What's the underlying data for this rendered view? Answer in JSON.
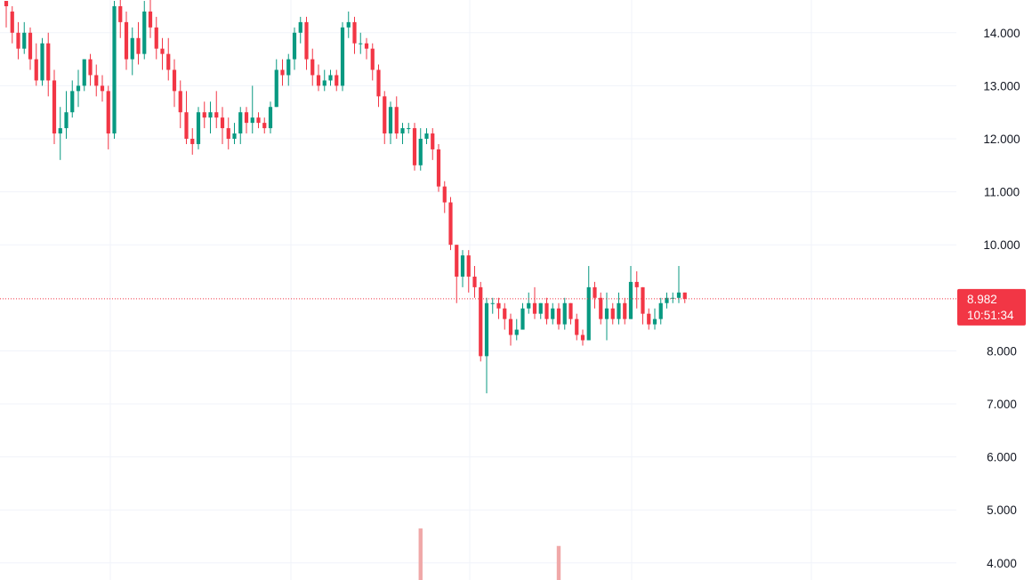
{
  "chart_data": {
    "type": "candlestick",
    "title": "",
    "xlabel": "",
    "ylabel": "",
    "ylim": [
      3.8,
      14.6
    ],
    "y_ticks": [
      "14.000",
      "13.000",
      "12.000",
      "11.000",
      "10.000",
      "8.000",
      "7.000",
      "6.000",
      "5.000",
      "4.000"
    ],
    "grid": true,
    "last_price": {
      "value": 8.982,
      "label": "8.982",
      "countdown": "10:51:34",
      "color": "#f23645"
    },
    "colors": {
      "up": "#089981",
      "down": "#f23645",
      "volume": "#f0a8a8",
      "grid": "#f0f3fa"
    },
    "candles": [
      [
        14.6,
        14.5,
        14.6,
        14.1
      ],
      [
        14.4,
        14.0,
        14.5,
        13.8
      ],
      [
        14.0,
        13.7,
        14.2,
        13.5
      ],
      [
        13.7,
        14.0,
        14.2,
        13.6
      ],
      [
        14.0,
        13.5,
        14.1,
        13.3
      ],
      [
        13.5,
        13.1,
        13.8,
        13.0
      ],
      [
        13.1,
        13.8,
        13.9,
        13.0
      ],
      [
        13.8,
        13.1,
        14.0,
        12.8
      ],
      [
        13.1,
        12.1,
        13.3,
        11.9
      ],
      [
        12.1,
        12.2,
        12.6,
        11.6
      ],
      [
        12.2,
        12.5,
        12.9,
        12.0
      ],
      [
        12.5,
        12.9,
        13.1,
        12.4
      ],
      [
        12.9,
        13.0,
        13.3,
        12.6
      ],
      [
        13.0,
        13.5,
        13.5,
        12.9
      ],
      [
        13.5,
        13.2,
        13.6,
        13.0
      ],
      [
        13.2,
        13.0,
        13.4,
        12.8
      ],
      [
        13.0,
        12.9,
        13.2,
        12.7
      ],
      [
        12.9,
        12.1,
        13.0,
        11.8
      ],
      [
        12.1,
        14.5,
        14.6,
        12.0
      ],
      [
        14.5,
        14.2,
        14.8,
        13.9
      ],
      [
        14.2,
        13.5,
        14.4,
        13.3
      ],
      [
        13.5,
        13.9,
        14.1,
        13.2
      ],
      [
        13.9,
        13.6,
        14.2,
        13.4
      ],
      [
        13.6,
        14.4,
        14.6,
        13.5
      ],
      [
        14.4,
        14.1,
        14.7,
        13.9
      ],
      [
        14.1,
        13.7,
        14.3,
        13.5
      ],
      [
        13.7,
        13.6,
        13.9,
        13.3
      ],
      [
        13.6,
        13.3,
        13.9,
        13.1
      ],
      [
        13.3,
        12.9,
        13.5,
        12.6
      ],
      [
        12.9,
        12.5,
        13.1,
        12.2
      ],
      [
        12.5,
        12.0,
        12.9,
        11.9
      ],
      [
        12.0,
        11.9,
        12.2,
        11.7
      ],
      [
        11.9,
        12.5,
        12.6,
        11.8
      ],
      [
        12.5,
        12.4,
        12.7,
        12.2
      ],
      [
        12.4,
        12.5,
        12.7,
        12.1
      ],
      [
        12.5,
        12.4,
        12.9,
        12.2
      ],
      [
        12.4,
        12.2,
        12.6,
        11.9
      ],
      [
        12.2,
        12.0,
        12.4,
        11.8
      ],
      [
        12.0,
        12.1,
        12.3,
        11.9
      ],
      [
        12.1,
        12.5,
        12.6,
        11.9
      ],
      [
        12.5,
        12.3,
        12.6,
        12.1
      ],
      [
        12.3,
        12.4,
        13.0,
        12.1
      ],
      [
        12.4,
        12.3,
        12.5,
        12.2
      ],
      [
        12.3,
        12.2,
        12.4,
        12.1
      ],
      [
        12.2,
        12.6,
        12.7,
        12.1
      ],
      [
        12.6,
        13.3,
        13.5,
        12.6
      ],
      [
        13.3,
        13.2,
        13.5,
        13.0
      ],
      [
        13.2,
        13.5,
        13.6,
        13.0
      ],
      [
        13.5,
        14.0,
        14.1,
        13.3
      ],
      [
        14.0,
        14.2,
        14.3,
        13.8
      ],
      [
        14.2,
        13.5,
        14.3,
        13.3
      ],
      [
        13.5,
        13.2,
        13.7,
        13.0
      ],
      [
        13.2,
        13.0,
        13.4,
        12.9
      ],
      [
        13.0,
        13.1,
        13.3,
        12.9
      ],
      [
        13.1,
        13.2,
        13.3,
        13.0
      ],
      [
        13.2,
        13.0,
        13.3,
        12.9
      ],
      [
        13.0,
        14.1,
        14.2,
        12.9
      ],
      [
        14.1,
        14.2,
        14.4,
        13.9
      ],
      [
        14.2,
        13.8,
        14.3,
        13.6
      ],
      [
        13.8,
        13.8,
        14.0,
        13.6
      ],
      [
        13.8,
        13.7,
        13.9,
        13.5
      ],
      [
        13.7,
        13.3,
        13.8,
        13.1
      ],
      [
        13.3,
        12.8,
        13.4,
        12.6
      ],
      [
        12.8,
        12.1,
        12.9,
        11.9
      ],
      [
        12.1,
        12.6,
        12.7,
        11.9
      ],
      [
        12.6,
        12.1,
        12.8,
        12.0
      ],
      [
        12.1,
        12.2,
        12.3,
        11.9
      ],
      [
        12.2,
        12.2,
        12.3,
        12.1
      ],
      [
        12.2,
        11.5,
        12.3,
        11.4
      ],
      [
        11.5,
        12.0,
        12.2,
        11.4
      ],
      [
        12.0,
        12.1,
        12.2,
        11.9
      ],
      [
        12.1,
        11.8,
        12.2,
        11.6
      ],
      [
        11.8,
        11.1,
        11.9,
        11.0
      ],
      [
        11.1,
        10.8,
        11.2,
        10.6
      ],
      [
        10.8,
        10.0,
        10.9,
        9.9
      ],
      [
        10.0,
        9.4,
        10.0,
        8.9
      ],
      [
        9.4,
        9.8,
        9.9,
        9.2
      ],
      [
        9.8,
        9.4,
        9.9,
        9.1
      ],
      [
        9.4,
        9.2,
        9.6,
        9.0
      ],
      [
        9.2,
        7.9,
        9.3,
        7.8
      ],
      [
        7.9,
        8.9,
        9.0,
        7.2
      ],
      [
        8.9,
        8.9,
        9.0,
        8.7
      ],
      [
        8.9,
        8.8,
        9.0,
        8.6
      ],
      [
        8.8,
        8.6,
        8.9,
        8.4
      ],
      [
        8.6,
        8.3,
        8.7,
        8.1
      ],
      [
        8.3,
        8.4,
        8.6,
        8.2
      ],
      [
        8.4,
        8.8,
        8.9,
        8.4
      ],
      [
        8.8,
        8.9,
        9.1,
        8.7
      ],
      [
        8.9,
        8.7,
        9.2,
        8.6
      ],
      [
        8.7,
        8.9,
        8.9,
        8.6
      ],
      [
        8.9,
        8.6,
        9.0,
        8.5
      ],
      [
        8.6,
        8.8,
        8.9,
        8.5
      ],
      [
        8.8,
        8.5,
        8.9,
        8.4
      ],
      [
        8.5,
        8.9,
        9.0,
        8.4
      ],
      [
        8.9,
        8.6,
        8.9,
        8.5
      ],
      [
        8.6,
        8.3,
        8.7,
        8.2
      ],
      [
        8.3,
        8.2,
        8.4,
        8.1
      ],
      [
        8.2,
        9.2,
        9.6,
        8.2
      ],
      [
        9.2,
        9.0,
        9.3,
        8.8
      ],
      [
        9.0,
        8.6,
        9.1,
        8.5
      ],
      [
        8.6,
        8.8,
        9.1,
        8.2
      ],
      [
        8.8,
        8.6,
        8.9,
        8.5
      ],
      [
        8.6,
        8.9,
        9.1,
        8.5
      ],
      [
        8.9,
        8.6,
        9.0,
        8.5
      ],
      [
        8.6,
        9.3,
        9.6,
        8.6
      ],
      [
        9.3,
        9.2,
        9.5,
        8.8
      ],
      [
        9.2,
        8.7,
        9.2,
        8.5
      ],
      [
        8.7,
        8.5,
        8.8,
        8.4
      ],
      [
        8.5,
        8.6,
        8.8,
        8.4
      ],
      [
        8.6,
        8.9,
        9.0,
        8.5
      ],
      [
        8.9,
        9.0,
        9.1,
        8.8
      ],
      [
        9.0,
        9.0,
        9.1,
        8.9
      ],
      [
        9.0,
        9.1,
        9.6,
        8.9
      ],
      [
        9.1,
        8.98,
        9.1,
        8.9
      ]
    ],
    "volume": [
      {
        "index": 69,
        "value": 4.65
      },
      {
        "index": 92,
        "value": 4.32
      }
    ]
  }
}
